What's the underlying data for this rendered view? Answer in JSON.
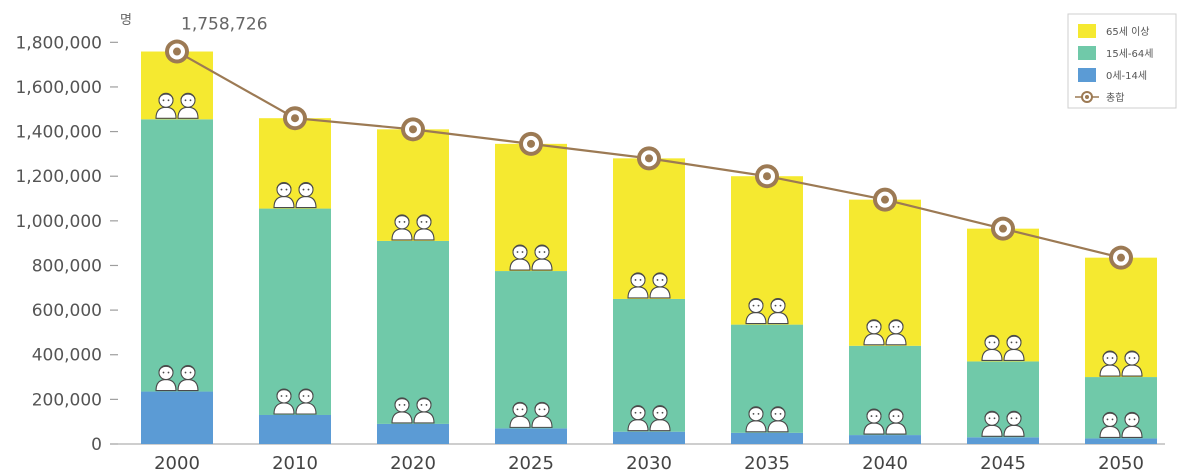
{
  "chart_data": {
    "type": "bar",
    "stacked": true,
    "categories": [
      "2000",
      "2010",
      "2020",
      "2025",
      "2030",
      "2035",
      "2040",
      "2045",
      "2050"
    ],
    "series": [
      {
        "name": "0세-14세",
        "color": "#5b9bd5",
        "values": [
          235000,
          130000,
          90000,
          70000,
          55000,
          50000,
          40000,
          30000,
          25000
        ]
      },
      {
        "name": "15세-64세",
        "color": "#70c9a9",
        "values": [
          1220000,
          925000,
          820000,
          705000,
          595000,
          485000,
          400000,
          340000,
          275000
        ]
      },
      {
        "name": "65세 이상",
        "color": "#f5e930",
        "values": [
          303726,
          405000,
          500000,
          570000,
          630000,
          665000,
          655000,
          595000,
          535000
        ]
      }
    ],
    "line": {
      "name": "총합",
      "color": "#9c7a54",
      "values": [
        1758726,
        1460000,
        1410000,
        1345000,
        1280000,
        1200000,
        1095000,
        965000,
        835000
      ]
    },
    "annotations": [
      {
        "category": "2000",
        "text": "1,758,726"
      }
    ],
    "y_unit": "명",
    "ylim": [
      0,
      1900000
    ],
    "yticks": [
      0,
      200000,
      400000,
      600000,
      800000,
      1000000,
      1200000,
      1400000,
      1600000,
      1800000
    ],
    "ytick_labels": [
      "0",
      "200,000",
      "400,000",
      "600,000",
      "800,000",
      "1,000,000",
      "1,200,000",
      "1,400,000",
      "1,600,000",
      "1,800,000"
    ],
    "legend": {
      "position": "top-right",
      "entries": [
        "65세 이상",
        "15세-64세",
        "0세-14세",
        "총합"
      ]
    },
    "grid": false,
    "icons": "person-pair-icon"
  }
}
